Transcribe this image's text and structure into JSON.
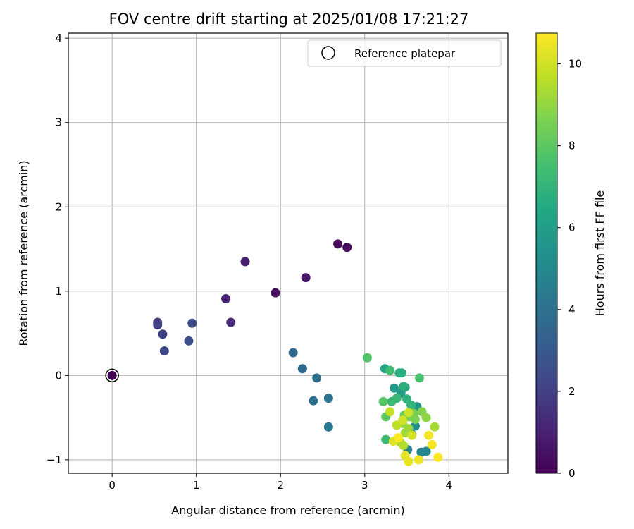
{
  "chart_data": {
    "type": "scatter",
    "title": "FOV centre drift starting at 2025/01/08 17:21:27",
    "xlabel": "Angular distance from reference (arcmin)",
    "ylabel": "Rotation from reference (arcmin)",
    "xlim": [
      -0.52,
      4.7
    ],
    "ylim": [
      -1.16,
      4.06
    ],
    "xticks": [
      0,
      1,
      2,
      3,
      4
    ],
    "yticks": [
      -1,
      0,
      1,
      2,
      3,
      4
    ],
    "grid": true,
    "legend": {
      "position": "top-right",
      "entries": [
        "Reference platepar"
      ]
    },
    "colorbar": {
      "label": "Hours from first FF file",
      "colormap": "viridis",
      "range": [
        0,
        10.75
      ],
      "ticks": [
        0,
        2,
        4,
        6,
        8,
        10
      ]
    },
    "reference_point": {
      "x": 0,
      "y": 0
    },
    "points": [
      {
        "x": 2.68,
        "y": 1.56,
        "h": 0.2
      },
      {
        "x": 2.79,
        "y": 1.52,
        "h": 0.3
      },
      {
        "x": 1.94,
        "y": 0.98,
        "h": 0.5
      },
      {
        "x": 2.3,
        "y": 1.16,
        "h": 0.7
      },
      {
        "x": 1.58,
        "y": 1.35,
        "h": 0.9
      },
      {
        "x": 1.35,
        "y": 0.91,
        "h": 1.1
      },
      {
        "x": 1.41,
        "y": 0.63,
        "h": 1.3
      },
      {
        "x": 0.0,
        "y": 0.0,
        "h": 0.0
      },
      {
        "x": 0.54,
        "y": 0.63,
        "h": 1.9
      },
      {
        "x": 0.54,
        "y": 0.6,
        "h": 2.0
      },
      {
        "x": 0.6,
        "y": 0.49,
        "h": 2.1
      },
      {
        "x": 0.95,
        "y": 0.62,
        "h": 2.4
      },
      {
        "x": 0.62,
        "y": 0.29,
        "h": 2.3
      },
      {
        "x": 0.91,
        "y": 0.41,
        "h": 2.6
      },
      {
        "x": 2.15,
        "y": 0.27,
        "h": 3.6
      },
      {
        "x": 2.26,
        "y": 0.08,
        "h": 3.8
      },
      {
        "x": 2.43,
        "y": -0.03,
        "h": 3.9
      },
      {
        "x": 2.39,
        "y": -0.3,
        "h": 4.0
      },
      {
        "x": 2.57,
        "y": -0.27,
        "h": 4.1
      },
      {
        "x": 2.57,
        "y": -0.61,
        "h": 4.3
      },
      {
        "x": 3.56,
        "y": -0.7,
        "h": 4.6
      },
      {
        "x": 3.51,
        "y": -0.88,
        "h": 4.8
      },
      {
        "x": 3.67,
        "y": -0.91,
        "h": 4.8
      },
      {
        "x": 3.73,
        "y": -0.9,
        "h": 5.0
      },
      {
        "x": 3.57,
        "y": -0.4,
        "h": 5.2
      },
      {
        "x": 3.6,
        "y": -0.6,
        "h": 5.3
      },
      {
        "x": 3.62,
        "y": -0.37,
        "h": 5.6
      },
      {
        "x": 3.35,
        "y": -0.15,
        "h": 5.8
      },
      {
        "x": 3.43,
        "y": -0.21,
        "h": 6.0
      },
      {
        "x": 3.48,
        "y": -0.14,
        "h": 6.2
      },
      {
        "x": 3.24,
        "y": 0.08,
        "h": 6.4
      },
      {
        "x": 3.41,
        "y": 0.03,
        "h": 6.6
      },
      {
        "x": 3.44,
        "y": 0.03,
        "h": 6.7
      },
      {
        "x": 3.46,
        "y": -0.13,
        "h": 6.8
      },
      {
        "x": 3.5,
        "y": -0.28,
        "h": 6.9
      },
      {
        "x": 3.55,
        "y": -0.35,
        "h": 7.0
      },
      {
        "x": 3.38,
        "y": -0.27,
        "h": 7.1
      },
      {
        "x": 3.32,
        "y": -0.31,
        "h": 7.2
      },
      {
        "x": 3.25,
        "y": -0.76,
        "h": 7.3
      },
      {
        "x": 3.3,
        "y": 0.06,
        "h": 7.4
      },
      {
        "x": 3.65,
        "y": -0.03,
        "h": 7.6
      },
      {
        "x": 3.03,
        "y": 0.21,
        "h": 7.8
      },
      {
        "x": 3.22,
        "y": -0.31,
        "h": 7.9
      },
      {
        "x": 3.25,
        "y": -0.49,
        "h": 8.0
      },
      {
        "x": 3.47,
        "y": -0.47,
        "h": 8.2
      },
      {
        "x": 3.53,
        "y": -0.49,
        "h": 8.4
      },
      {
        "x": 3.58,
        "y": -0.45,
        "h": 8.5
      },
      {
        "x": 3.6,
        "y": -0.52,
        "h": 8.6
      },
      {
        "x": 3.68,
        "y": -0.43,
        "h": 8.7
      },
      {
        "x": 3.73,
        "y": -0.5,
        "h": 8.9
      },
      {
        "x": 3.45,
        "y": -0.57,
        "h": 9.0
      },
      {
        "x": 3.52,
        "y": -0.63,
        "h": 9.1
      },
      {
        "x": 3.48,
        "y": -0.68,
        "h": 9.2
      },
      {
        "x": 3.83,
        "y": -0.61,
        "h": 9.3
      },
      {
        "x": 3.42,
        "y": -0.79,
        "h": 9.4
      },
      {
        "x": 3.46,
        "y": -0.83,
        "h": 9.5
      },
      {
        "x": 3.38,
        "y": -0.59,
        "h": 9.7
      },
      {
        "x": 3.3,
        "y": -0.43,
        "h": 9.8
      },
      {
        "x": 3.52,
        "y": -0.44,
        "h": 9.9
      },
      {
        "x": 3.45,
        "y": -0.53,
        "h": 10.0
      },
      {
        "x": 3.56,
        "y": -0.71,
        "h": 10.1
      },
      {
        "x": 3.34,
        "y": -0.78,
        "h": 10.2
      },
      {
        "x": 3.48,
        "y": -0.95,
        "h": 10.3
      },
      {
        "x": 3.52,
        "y": -1.02,
        "h": 10.4
      },
      {
        "x": 3.64,
        "y": -1.0,
        "h": 10.5
      },
      {
        "x": 3.76,
        "y": -0.71,
        "h": 10.6
      },
      {
        "x": 3.8,
        "y": -0.82,
        "h": 10.65
      },
      {
        "x": 3.87,
        "y": -0.97,
        "h": 10.7
      },
      {
        "x": 3.4,
        "y": -0.74,
        "h": 10.7
      }
    ]
  }
}
